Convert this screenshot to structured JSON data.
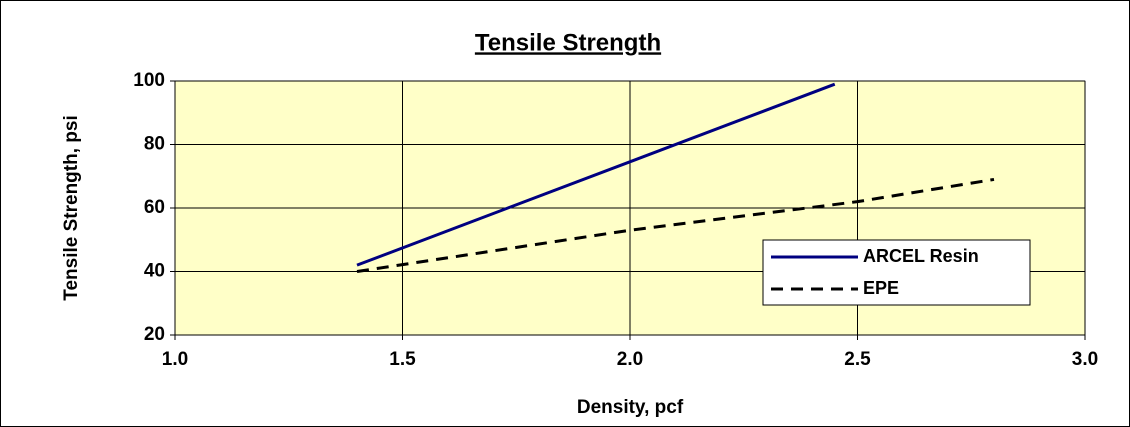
{
  "chart_data": {
    "type": "line",
    "title": "Tensile Strength",
    "x_label": "Density, pcf",
    "y_label": "Tensile Strength, psi",
    "xlim": [
      1.0,
      3.0
    ],
    "xticks": [
      {
        "value": 1.0,
        "label": "1.0"
      },
      {
        "value": 1.5,
        "label": "1.5"
      },
      {
        "value": 2.0,
        "label": "2.0"
      },
      {
        "value": 2.5,
        "label": "2.5"
      },
      {
        "value": 3.0,
        "label": "3.0"
      }
    ],
    "ylim": [
      20,
      100
    ],
    "yticks": [
      20,
      40,
      60,
      80,
      100
    ],
    "grid": true,
    "legend": "right",
    "series": [
      {
        "name": "ARCEL Resin",
        "color": "#000080",
        "dash": "solid",
        "x": [
          1.4,
          2.45
        ],
        "values": [
          42,
          99
        ]
      },
      {
        "name": "EPE",
        "color": "#000000",
        "dash": "dashed",
        "x": [
          1.4,
          2.0,
          2.5,
          2.8
        ],
        "values": [
          40,
          53,
          62,
          69
        ]
      }
    ]
  }
}
